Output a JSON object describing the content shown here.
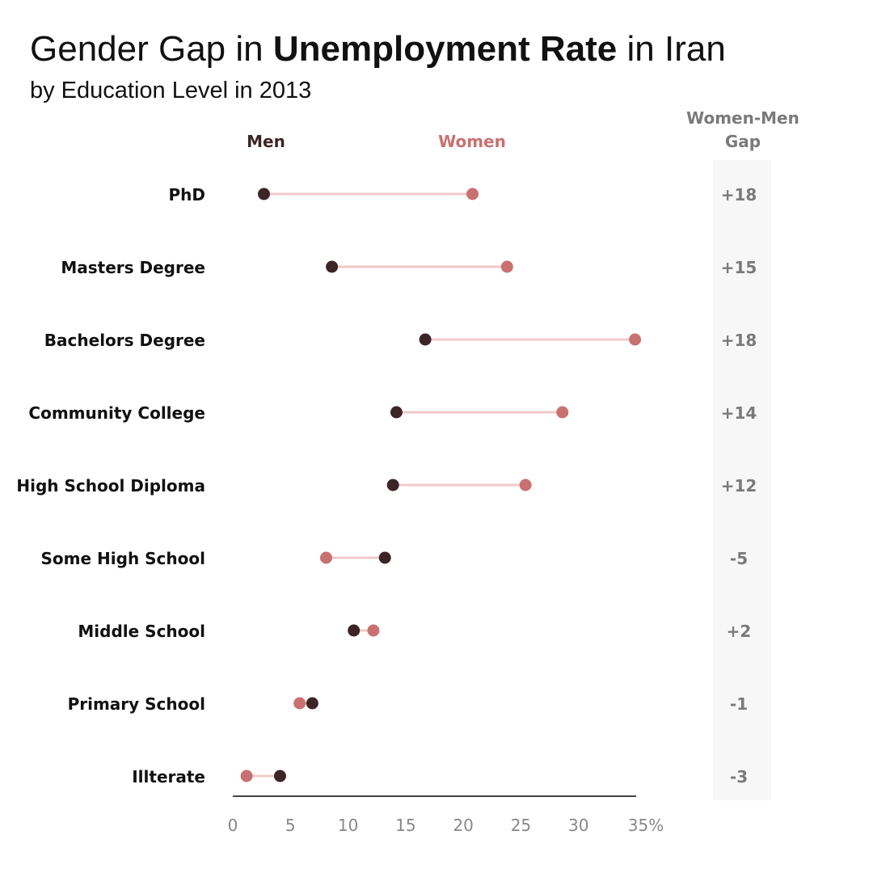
{
  "title": {
    "part1": "Gender Gap in ",
    "bold": "Unemployment Rate",
    "part2": " in Iran"
  },
  "subtitle": "by Education Level in 2013",
  "chart_data": {
    "type": "dumbbell",
    "legend": {
      "men": "Men",
      "women": "Women"
    },
    "gap_header": [
      "Women-Men",
      "Gap"
    ],
    "categories": [
      "PhD",
      "Masters Degree",
      "Bachelors Degree",
      "Community College",
      "High School Diploma",
      "Some High School",
      "Middle School",
      "Primary School",
      "Illterate"
    ],
    "series": [
      {
        "name": "Men",
        "color": "#3d2427",
        "values": [
          2.7,
          8.6,
          16.7,
          14.2,
          13.9,
          13.2,
          10.5,
          6.9,
          4.1
        ]
      },
      {
        "name": "Women",
        "color": "#c97171",
        "values": [
          20.8,
          23.8,
          34.9,
          28.6,
          25.4,
          8.1,
          12.2,
          5.8,
          1.2
        ]
      }
    ],
    "gap_labels": [
      "+18",
      "+15",
      "+18",
      "+14",
      "+12",
      "-5",
      "+2",
      "-1",
      "-3"
    ],
    "xlim": [
      0,
      35
    ],
    "x_ticks": [
      "0",
      "5",
      "10",
      "15",
      "20",
      "25",
      "30",
      "35%"
    ],
    "connector_color": "#f0c9c9",
    "grid": false
  }
}
